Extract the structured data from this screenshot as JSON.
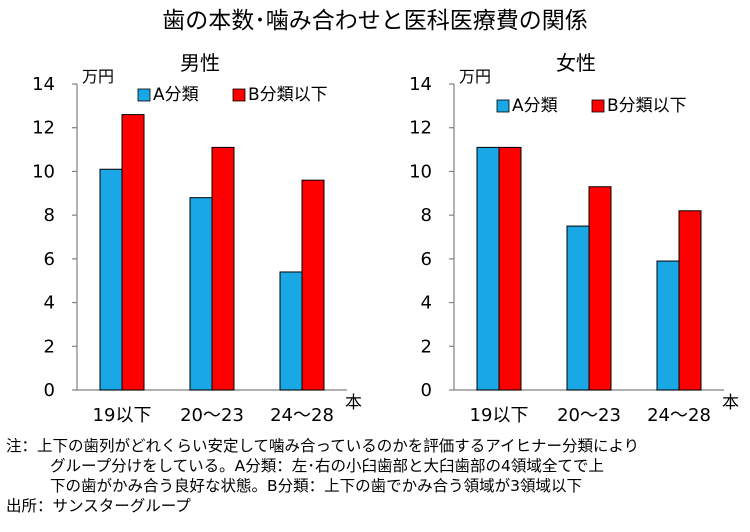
{
  "figure": {
    "title": "歯の本数･噛み合わせと医科医療費の関係"
  },
  "chart_data": [
    {
      "type": "bar",
      "title": "男性",
      "ylabel": "万円",
      "xlabel": "本",
      "categories": [
        "19以下",
        "20～23",
        "24～28"
      ],
      "series": [
        {
          "name": "A分類",
          "color": "#1AA7E6",
          "values": [
            10.1,
            8.8,
            5.4
          ]
        },
        {
          "name": "B分類以下",
          "color": "#FF0000",
          "values": [
            12.6,
            11.1,
            9.6
          ]
        }
      ],
      "ylim": [
        0,
        14
      ],
      "yticks": [
        "0",
        "2",
        "4",
        "6",
        "8",
        "10",
        "12",
        "14"
      ],
      "grid": false,
      "legend": "top-center"
    },
    {
      "type": "bar",
      "title": "女性",
      "ylabel": "万円",
      "xlabel": "本",
      "categories": [
        "19以下",
        "20～23",
        "24～28"
      ],
      "series": [
        {
          "name": "A分類",
          "color": "#1AA7E6",
          "values": [
            11.1,
            7.5,
            5.9
          ]
        },
        {
          "name": "B分類以下",
          "color": "#FF0000",
          "values": [
            11.1,
            9.3,
            8.2
          ]
        }
      ],
      "ylim": [
        0,
        14
      ],
      "yticks": [
        "0",
        "2",
        "4",
        "6",
        "8",
        "10",
        "12",
        "14"
      ],
      "grid": false,
      "legend": "top-center"
    }
  ],
  "notes": {
    "line1": "注：上下の歯列がどれくらい安定して噛み合っているのかを評価するアイヒナー分類により",
    "line2": "グループ分けをしている。A分類：左･右の小臼歯部と大臼歯部の4領域全てで上",
    "line3": "下の歯がかみ合う良好な状態。B分類：上下の歯でかみ合う領域が3領域以下",
    "source": "出所：サンスターグループ"
  }
}
